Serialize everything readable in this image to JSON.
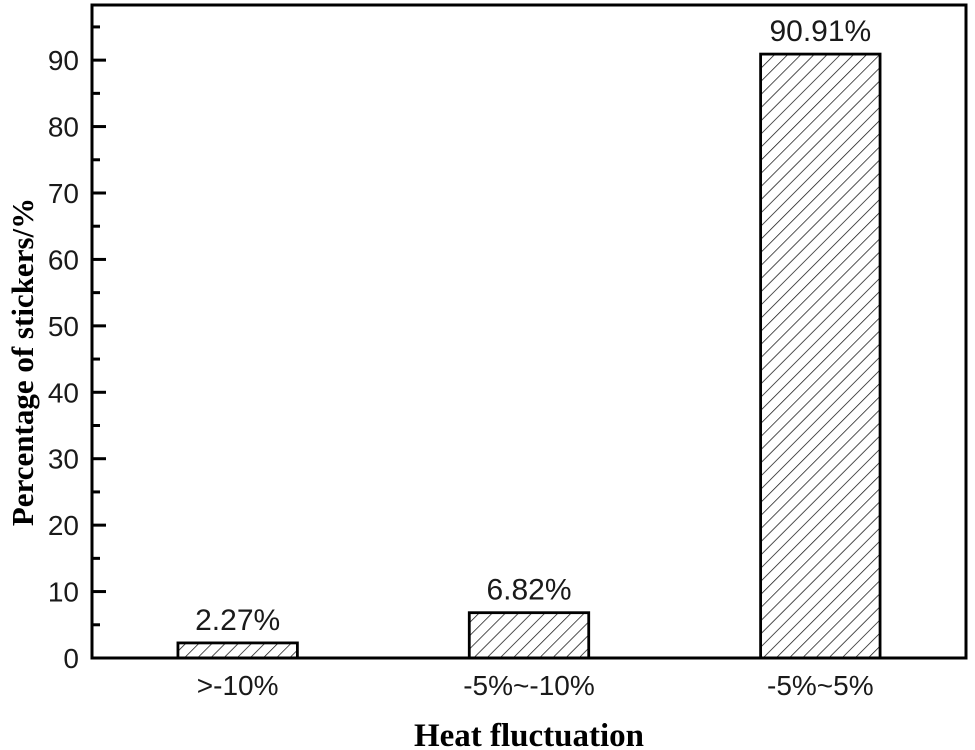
{
  "figure": {
    "background": "#ffffff"
  },
  "chart_data": {
    "type": "bar",
    "title": "",
    "categories": [
      ">-10%",
      "-5%~-10%",
      "-5%~5%"
    ],
    "values": [
      2.27,
      6.82,
      90.91
    ],
    "bar_labels": [
      "2.27%",
      "6.82%",
      "90.91%"
    ],
    "xlabel": "Heat fluctuation",
    "ylabel": "Percentage of stickers/%",
    "ylim": [
      0,
      98.3
    ],
    "ytick_major": [
      0,
      10,
      20,
      30,
      40,
      50,
      60,
      70,
      80,
      90
    ],
    "ytick_minor": [
      5,
      15,
      25,
      35,
      45,
      55,
      65,
      75,
      85,
      95
    ],
    "grid": false,
    "legend": false,
    "layout": {
      "bar_width_fraction": 0.41,
      "hatch_direction": "forward-slash"
    },
    "colors": {
      "axis": "#000000",
      "tick_label": "#1a1a1a",
      "bar_border": "#000000",
      "hatch_line": "#151515",
      "bar_fill": "#ffffff",
      "background": "#ffffff"
    }
  }
}
